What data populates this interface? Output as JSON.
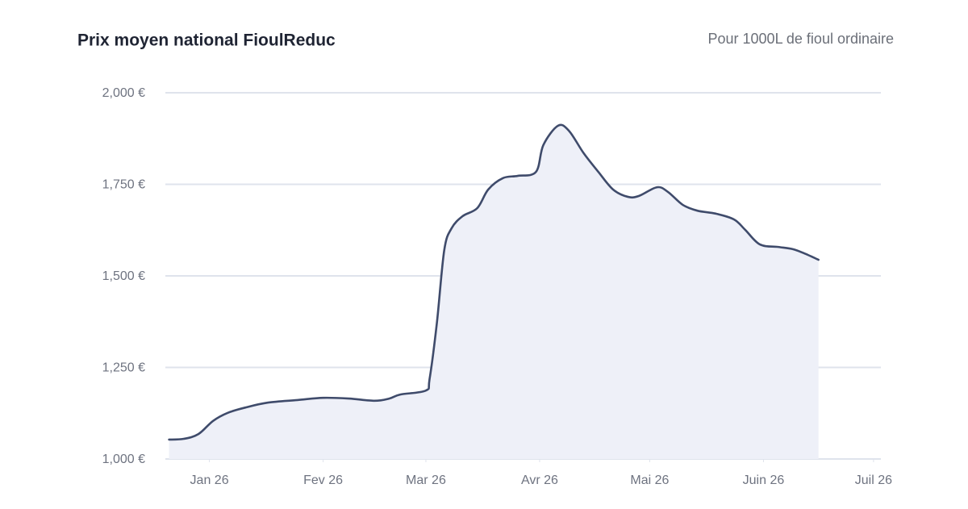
{
  "chart_data": {
    "type": "area",
    "title": "Prix moyen national FioulReduc",
    "subtitle": "Pour 1000L de fioul ordinaire",
    "x": [
      -11,
      -7,
      -3,
      1,
      5,
      10,
      16,
      24,
      31,
      38,
      45,
      49,
      52,
      59,
      60,
      62,
      64,
      66,
      69,
      73,
      76,
      80,
      84,
      89,
      91,
      95,
      98,
      102,
      106,
      110,
      114,
      117,
      122,
      125,
      129,
      133,
      138,
      143,
      146,
      150,
      155,
      159,
      162,
      166
    ],
    "series": [
      {
        "color": "#3f4b6b",
        "fill": "#eef0f8",
        "values": [
          1053,
          1055,
          1068,
          1104,
          1126,
          1141,
          1154,
          1161,
          1167,
          1165,
          1159,
          1165,
          1176,
          1187,
          1218,
          1372,
          1570,
          1630,
          1663,
          1685,
          1736,
          1767,
          1773,
          1784,
          1857,
          1910,
          1896,
          1835,
          1784,
          1736,
          1716,
          1718,
          1742,
          1729,
          1694,
          1678,
          1670,
          1654,
          1626,
          1586,
          1579,
          1573,
          1562,
          1544
        ]
      }
    ],
    "xlim": [
      -12,
      183
    ],
    "xticks": [
      {
        "value": 0,
        "label": "Jan 26"
      },
      {
        "value": 31,
        "label": "Fev 26"
      },
      {
        "value": 59,
        "label": "Mar 26"
      },
      {
        "value": 90,
        "label": "Avr 26"
      },
      {
        "value": 120,
        "label": "Mai 26"
      },
      {
        "value": 151,
        "label": "Juin 26"
      },
      {
        "value": 181,
        "label": "Juil 26"
      }
    ],
    "ylim": [
      1000,
      2000
    ],
    "yticks": [
      {
        "value": 1000,
        "label": "1,000 €"
      },
      {
        "value": 1250,
        "label": "1,250 €"
      },
      {
        "value": 1500,
        "label": "1,500 €"
      },
      {
        "value": 1750,
        "label": "1,750 €"
      },
      {
        "value": 2000,
        "label": "2,000 €"
      }
    ],
    "grid": true
  }
}
